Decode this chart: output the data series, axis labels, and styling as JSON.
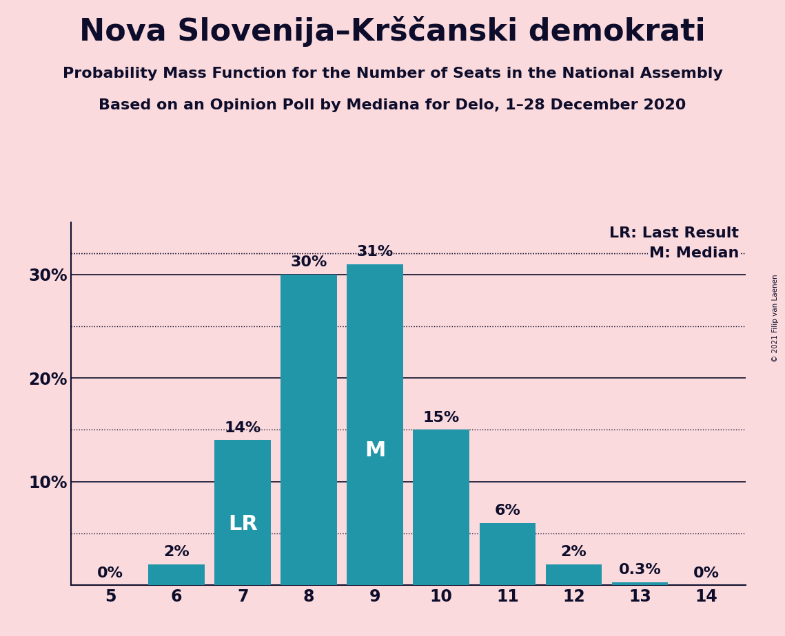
{
  "title": "Nova Slovenija–Krščanski demokrati",
  "subtitle1": "Probability Mass Function for the Number of Seats in the National Assembly",
  "subtitle2": "Based on an Opinion Poll by Mediana for Delo, 1–28 December 2020",
  "copyright": "© 2021 Filip van Laenen",
  "seats": [
    5,
    6,
    7,
    8,
    9,
    10,
    11,
    12,
    13,
    14
  ],
  "probabilities": [
    0.0,
    2.0,
    14.0,
    30.0,
    31.0,
    15.0,
    6.0,
    2.0,
    0.3,
    0.0
  ],
  "bar_color": "#2196A8",
  "background_color": "#FADADD",
  "bar_labels": [
    "0%",
    "2%",
    "14%",
    "30%",
    "31%",
    "15%",
    "6%",
    "2%",
    "0.3%",
    "0%"
  ],
  "last_result_seat": 7,
  "median_seat": 9,
  "lr_label": "LR",
  "m_label": "M",
  "legend_lr": "LR: Last Result",
  "legend_m": "M: Median",
  "ylim": [
    0,
    35
  ],
  "yticks": [
    0,
    10,
    20,
    30
  ],
  "ytick_labels": [
    "",
    "10%",
    "20%",
    "30%"
  ],
  "dotted_lines": [
    5.0,
    15.0,
    25.0
  ],
  "solid_lines": [
    10.0,
    20.0,
    30.0
  ],
  "title_fontsize": 32,
  "subtitle_fontsize": 16,
  "bar_label_fontsize": 16,
  "axis_label_fontsize": 17,
  "legend_fontsize": 16,
  "inbar_fontsize": 22,
  "text_color": "#0d0d2b",
  "left_spine_color": "#0d0d2b",
  "bottom_spine_color": "#0d0d2b"
}
